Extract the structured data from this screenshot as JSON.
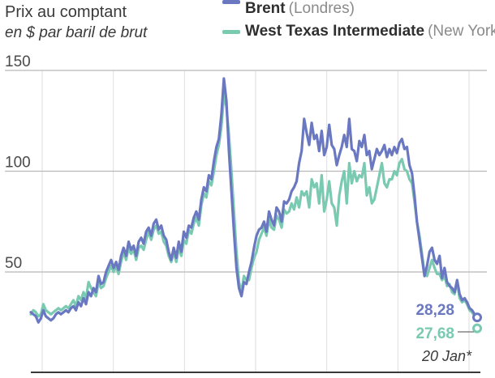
{
  "title": "Prix au comptant",
  "subtitle": "en $ par baril de brut",
  "legend": [
    {
      "name": "Brent",
      "place": "(Londres)",
      "color": "#6a78c2"
    },
    {
      "name": "West Texas Intermediate",
      "place": "(New York)",
      "color": "#7ac9b1"
    }
  ],
  "chart_data": {
    "type": "line",
    "ylim": [
      15,
      150
    ],
    "yticks": [
      "150",
      "100",
      "50"
    ],
    "ytick_values": [
      150,
      100,
      50
    ],
    "vertical_gridlines": 7,
    "end_labels": {
      "brent": "28,28",
      "wti": "27,68",
      "date": "20 Jan*"
    },
    "series": [
      {
        "name": "Brent",
        "color": "#6a78c2",
        "values": [
          30,
          29,
          28,
          25,
          27,
          31,
          28,
          27,
          26,
          27,
          29,
          30,
          29,
          30,
          31,
          30,
          32,
          33,
          31,
          35,
          33,
          37,
          34,
          40,
          38,
          42,
          40,
          48,
          44,
          45,
          50,
          53,
          56,
          52,
          55,
          51,
          58,
          62,
          58,
          65,
          61,
          63,
          58,
          65,
          67,
          64,
          70,
          72,
          68,
          74,
          76,
          71,
          73,
          68,
          66,
          60,
          56,
          62,
          57,
          65,
          60,
          70,
          67,
          73,
          72,
          77,
          80,
          76,
          86,
          92,
          90,
          98,
          96,
          105,
          112,
          116,
          128,
          146,
          135,
          110,
          90,
          70,
          52,
          42,
          38,
          45,
          44,
          50,
          55,
          62,
          68,
          71,
          72,
          75,
          70,
          80,
          76,
          73,
          82,
          80,
          75,
          85,
          84,
          86,
          90,
          92,
          95,
          104,
          110,
          126,
          119,
          113,
          124,
          116,
          118,
          110,
          120,
          108,
          112,
          123,
          113,
          111,
          103,
          108,
          112,
          118,
          112,
          126,
          111,
          110,
          105,
          115,
          112,
          118,
          108,
          110,
          101,
          106,
          111,
          108,
          110,
          113,
          107,
          111,
          108,
          112,
          109,
          114,
          116,
          111,
          112,
          103,
          99,
          88,
          75,
          66,
          57,
          48,
          53,
          60,
          62,
          56,
          54,
          58,
          47,
          52,
          45,
          43,
          42,
          40,
          46,
          39,
          36,
          37,
          35,
          32,
          31,
          29,
          28.28
        ]
      },
      {
        "name": "West Texas Intermediate",
        "color": "#7ac9b1",
        "values": [
          29,
          31,
          30,
          28,
          29,
          34,
          31,
          30,
          29,
          30,
          31,
          32,
          31,
          32,
          33,
          32,
          34,
          36,
          33,
          38,
          36,
          40,
          37,
          45,
          42,
          40,
          38,
          45,
          42,
          43,
          47,
          50,
          53,
          50,
          53,
          49,
          55,
          60,
          56,
          62,
          59,
          61,
          56,
          62,
          63,
          61,
          66,
          70,
          66,
          71,
          73,
          69,
          70,
          65,
          63,
          58,
          55,
          60,
          55,
          62,
          58,
          66,
          64,
          71,
          69,
          74,
          77,
          73,
          83,
          89,
          87,
          95,
          93,
          100,
          108,
          113,
          122,
          138,
          132,
          118,
          100,
          80,
          60,
          45,
          40,
          48,
          46,
          46,
          52,
          57,
          60,
          66,
          69,
          72,
          68,
          76,
          72,
          71,
          78,
          76,
          72,
          81,
          79,
          80,
          84,
          81,
          87,
          82,
          90,
          88,
          90,
          82,
          96,
          92,
          94,
          84,
          98,
          80,
          86,
          95,
          84,
          82,
          73,
          88,
          95,
          100,
          84,
          104,
          94,
          100,
          95,
          98,
          97,
          104,
          88,
          92,
          84,
          86,
          92,
          98,
          104,
          94,
          92,
          96,
          96,
          100,
          98,
          104,
          106,
          101,
          100,
          96,
          94,
          85,
          75,
          68,
          59,
          49,
          48,
          52,
          56,
          52,
          49,
          49,
          46,
          48,
          43,
          44,
          40,
          39,
          45,
          37,
          35,
          36,
          34,
          31,
          30,
          28,
          27.68
        ]
      }
    ]
  }
}
